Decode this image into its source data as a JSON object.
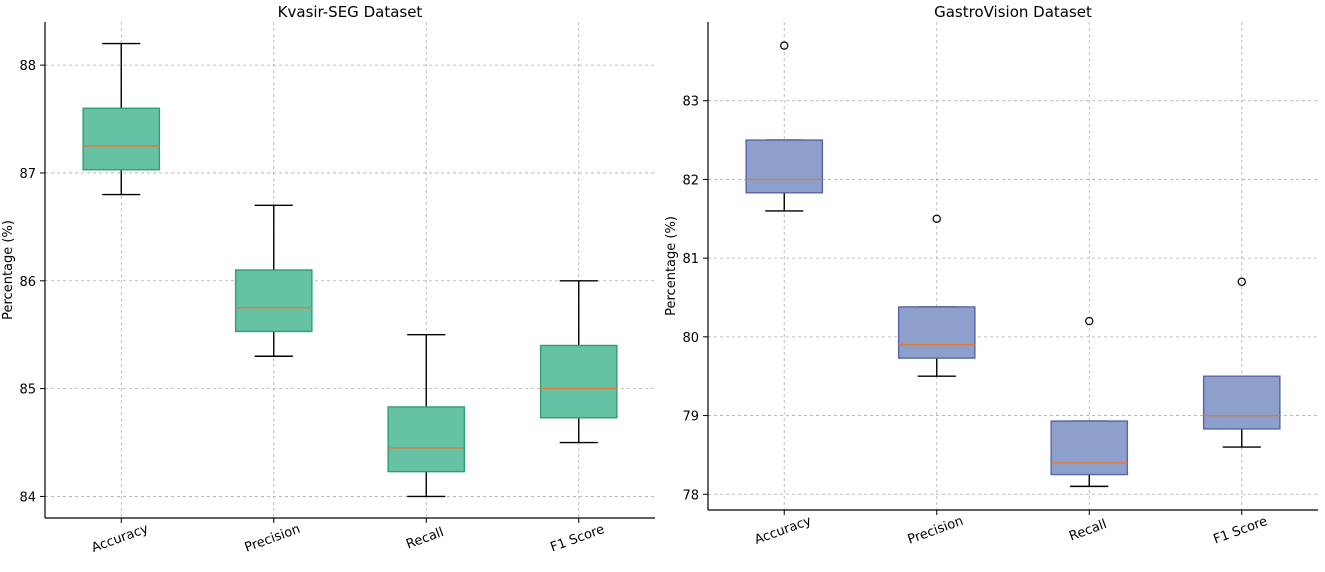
{
  "chart_data": [
    {
      "type": "boxplot",
      "title": "Kvasir-SEG Dataset",
      "ylabel": "Percentage (%)",
      "xlabel": "",
      "ylim": [
        83.8,
        88.4
      ],
      "yticks": [
        84,
        85,
        86,
        87,
        88
      ],
      "grid": true,
      "box_color": "#66c2a5",
      "box_edge": "#2e9e78",
      "median_color": "#e07b39",
      "categories": [
        "Accuracy",
        "Precision",
        "Recall",
        "F1 Score"
      ],
      "boxes": [
        {
          "min": 86.8,
          "q1": 87.03,
          "median": 87.25,
          "q3": 87.6,
          "max": 88.2,
          "outliers": []
        },
        {
          "min": 85.3,
          "q1": 85.53,
          "median": 85.75,
          "q3": 86.1,
          "max": 86.7,
          "outliers": []
        },
        {
          "min": 84.0,
          "q1": 84.23,
          "median": 84.45,
          "q3": 84.83,
          "max": 85.5,
          "outliers": []
        },
        {
          "min": 84.5,
          "q1": 84.73,
          "median": 85.0,
          "q3": 85.4,
          "max": 86.0,
          "outliers": []
        }
      ]
    },
    {
      "type": "boxplot",
      "title": "GastroVision Dataset",
      "ylabel": "Percentage (%)",
      "xlabel": "",
      "ylim": [
        77.8,
        84.0
      ],
      "yticks": [
        78,
        79,
        80,
        81,
        82,
        83
      ],
      "grid": true,
      "box_color": "#8da0cb",
      "box_edge": "#5a64a8",
      "median_color": "#e07b39",
      "categories": [
        "Accuracy",
        "Precision",
        "Recall",
        "F1 Score"
      ],
      "boxes": [
        {
          "min": 81.6,
          "q1": 81.83,
          "median": 82.0,
          "q3": 82.5,
          "max": 82.5,
          "outliers": [
            83.7
          ]
        },
        {
          "min": 79.5,
          "q1": 79.73,
          "median": 79.9,
          "q3": 80.38,
          "max": 80.38,
          "outliers": [
            81.5
          ]
        },
        {
          "min": 78.1,
          "q1": 78.25,
          "median": 78.4,
          "q3": 78.93,
          "max": 78.93,
          "outliers": [
            80.2
          ]
        },
        {
          "min": 78.6,
          "q1": 78.83,
          "median": 79.0,
          "q3": 79.5,
          "max": 79.5,
          "outliers": [
            80.7
          ]
        }
      ]
    }
  ]
}
